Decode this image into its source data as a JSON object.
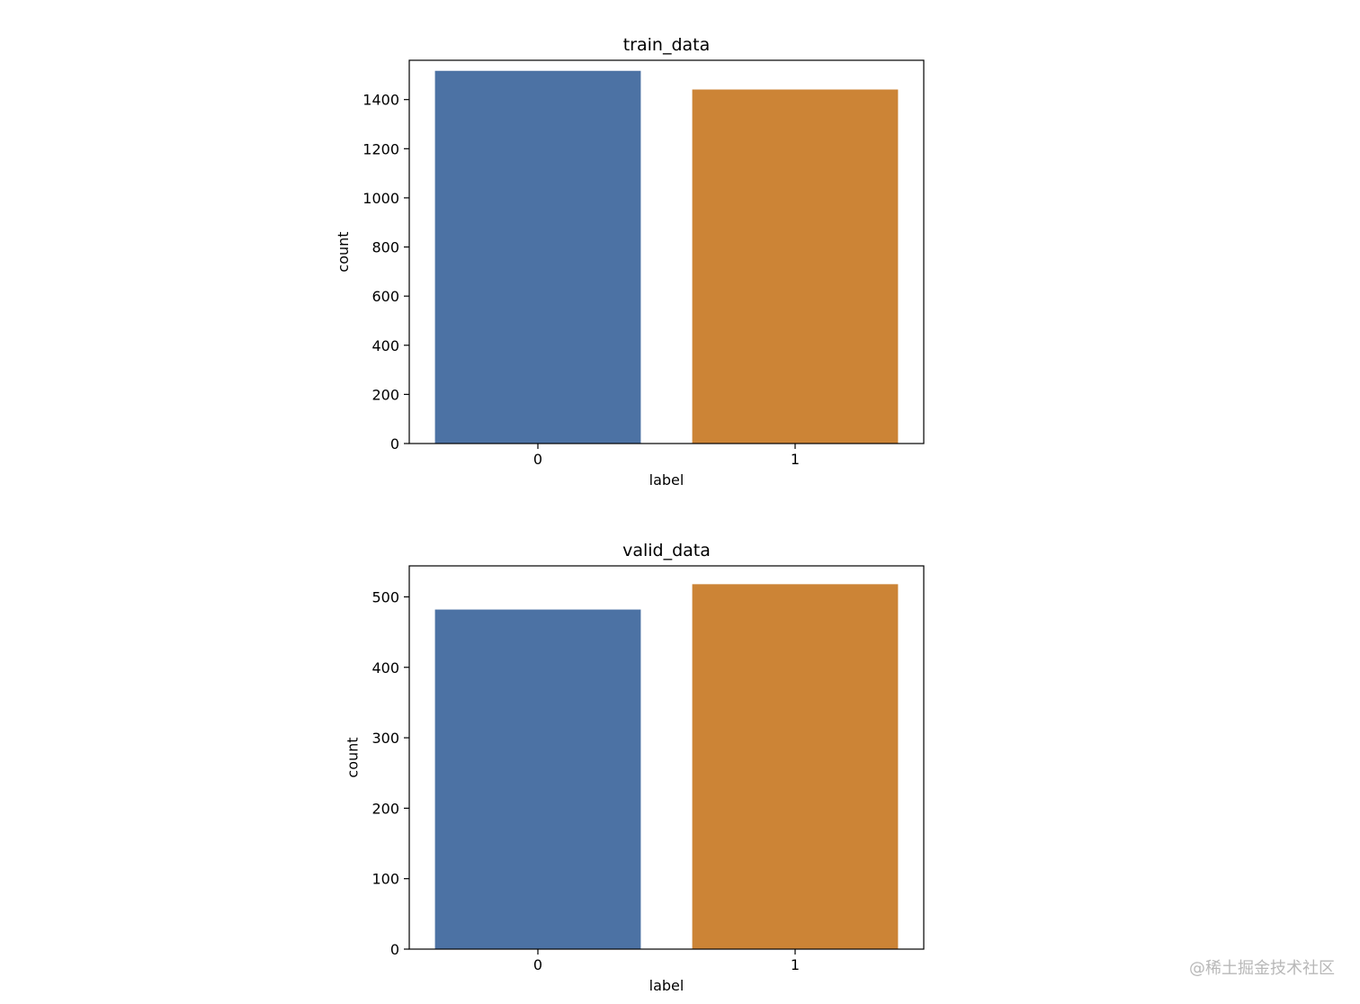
{
  "chart_data": [
    {
      "type": "bar",
      "title": "train_data",
      "xlabel": "label",
      "ylabel": "count",
      "categories": [
        "0",
        "1"
      ],
      "values": [
        1517,
        1441
      ],
      "colors": [
        "#4c72a4",
        "#cc8436"
      ],
      "ylim": [
        0,
        1560
      ],
      "yticks": [
        0,
        200,
        400,
        600,
        800,
        1000,
        1200,
        1400
      ],
      "grid": false
    },
    {
      "type": "bar",
      "title": "valid_data",
      "xlabel": "label",
      "ylabel": "count",
      "categories": [
        "0",
        "1"
      ],
      "values": [
        482,
        518
      ],
      "colors": [
        "#4c72a4",
        "#cc8436"
      ],
      "ylim": [
        0,
        544
      ],
      "yticks": [
        0,
        100,
        200,
        300,
        400,
        500
      ],
      "grid": false
    }
  ],
  "watermark": "@稀土掘金技术社区"
}
